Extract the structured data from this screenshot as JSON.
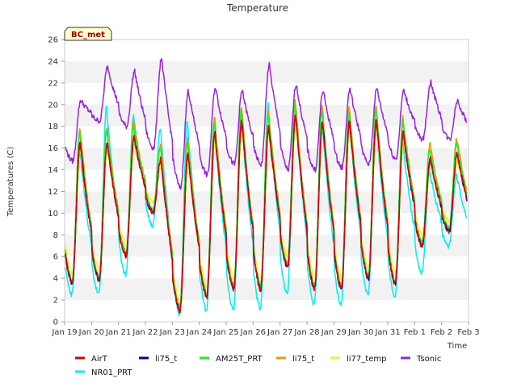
{
  "chart_data": {
    "type": "line",
    "title": "Temperature",
    "xlabel": "Time",
    "ylabel": "Temperatures (C)",
    "badge": "BC_met",
    "ylim": [
      0,
      26
    ],
    "yticks": [
      0,
      2,
      4,
      6,
      8,
      10,
      12,
      14,
      16,
      18,
      20,
      22,
      24,
      26
    ],
    "xlim": [
      0,
      15
    ],
    "xticks": [
      {
        "v": 0,
        "label": "Jan 19"
      },
      {
        "v": 1,
        "label": "Jan 20"
      },
      {
        "v": 2,
        "label": "Jan 21"
      },
      {
        "v": 3,
        "label": "Jan 22"
      },
      {
        "v": 4,
        "label": "Jan 23"
      },
      {
        "v": 5,
        "label": "Jan 24"
      },
      {
        "v": 6,
        "label": "Jan 25"
      },
      {
        "v": 7,
        "label": "Jan 26"
      },
      {
        "v": 8,
        "label": "Jan 27"
      },
      {
        "v": 9,
        "label": "Jan 28"
      },
      {
        "v": 10,
        "label": "Jan 29"
      },
      {
        "v": 11,
        "label": "Jan 30"
      },
      {
        "v": 12,
        "label": "Jan 31"
      },
      {
        "v": 13,
        "label": "Feb 1"
      },
      {
        "v": 14,
        "label": "Feb 2"
      },
      {
        "v": 15,
        "label": "Feb 3"
      }
    ],
    "grid": "horizontal bands",
    "legend_position": "bottom",
    "daily_extremes": {
      "days": [
        0,
        1,
        2,
        3,
        4,
        5,
        6,
        7,
        8,
        9,
        10,
        11,
        12,
        13,
        14
      ],
      "AirT_min": [
        3.5,
        3.8,
        6.1,
        10.0,
        1.0,
        2.3,
        3.0,
        3.0,
        5.0,
        3.0,
        3.0,
        4.0,
        3.5,
        7.0,
        8.3
      ],
      "AirT_max": [
        16.5,
        16.5,
        17.0,
        15.0,
        15.5,
        17.5,
        18.5,
        18.0,
        19.0,
        18.5,
        18.5,
        18.5,
        17.5,
        15.0,
        15.5
      ],
      "NR01_PRT_min": [
        2.5,
        2.5,
        4.3,
        8.8,
        0.7,
        1.0,
        1.0,
        1.2,
        2.5,
        1.6,
        1.5,
        2.5,
        2.3,
        4.5,
        6.9
      ],
      "NR01_PRT_max": [
        16.0,
        19.8,
        19.0,
        18.0,
        18.5,
        18.3,
        19.0,
        20.0,
        20.0,
        18.5,
        19.0,
        18.5,
        16.5,
        13.8,
        13.5
      ],
      "Tsonic_min": [
        14.8,
        18.5,
        18.0,
        16.0,
        12.3,
        13.5,
        14.5,
        14.5,
        14.0,
        14.0,
        14.2,
        14.5,
        15.0,
        16.8,
        16.8
      ],
      "Tsonic_max": [
        20.4,
        23.5,
        23.1,
        24.3,
        21.3,
        21.6,
        21.3,
        23.7,
        21.9,
        21.3,
        21.5,
        21.5,
        21.3,
        22.1,
        20.4
      ]
    },
    "series": [
      {
        "name": "AirT",
        "color": "#dd0000"
      },
      {
        "name": "NR01_PRT",
        "color": "#00eeee"
      },
      {
        "name": "li75_t",
        "color": "#0000aa"
      },
      {
        "name": "AM25T_PRT",
        "color": "#22ee22"
      },
      {
        "name": "li75_t",
        "color": "#ee9900"
      },
      {
        "name": "li77_temp",
        "color": "#ffee22"
      },
      {
        "name": "Tsonic",
        "color": "#9922dd"
      }
    ]
  }
}
